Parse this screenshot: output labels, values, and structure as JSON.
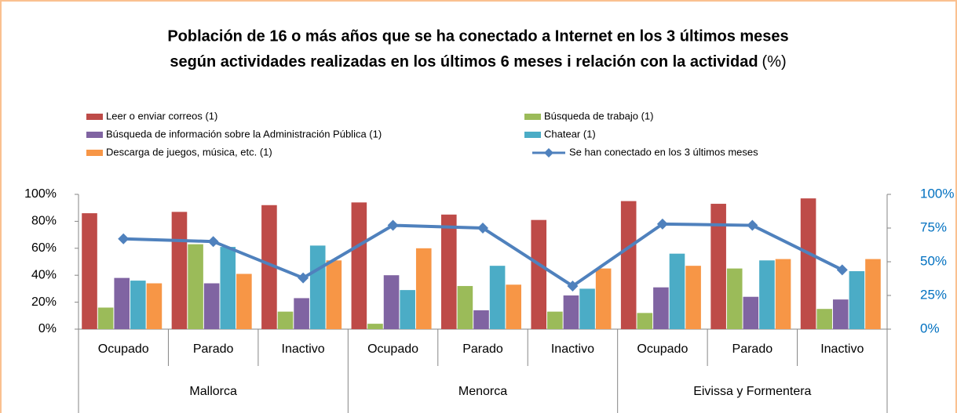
{
  "chart_data": {
    "type": "bar",
    "title": [
      "Población de 16 o más años que se ha conectado a Internet en los 3 últimos meses",
      "según actividades realizadas en los últimos 6 meses i relación con la actividad"
    ],
    "title_unit": "(%)",
    "categories": [
      "Ocupado",
      "Parado",
      "Inactivo",
      "Ocupado",
      "Parado",
      "Inactivo",
      "Ocupado",
      "Parado",
      "Inactivo"
    ],
    "groups": [
      "Mallorca",
      "Menorca",
      "Eivissa y Formentera"
    ],
    "series": [
      {
        "name": "Leer o enviar correos (1)",
        "color": "#be4b48",
        "values": [
          86,
          87,
          92,
          94,
          85,
          81,
          95,
          93,
          97
        ]
      },
      {
        "name": "Búsqueda de trabajo (1)",
        "color": "#9bbb59",
        "values": [
          16,
          63,
          13,
          4,
          32,
          13,
          12,
          45,
          15
        ]
      },
      {
        "name": "Búsqueda de información sobre la Administración Pública (1)",
        "color": "#8064a2",
        "values": [
          38,
          34,
          23,
          40,
          14,
          25,
          31,
          24,
          22
        ]
      },
      {
        "name": "Chatear (1)",
        "color": "#4bacc6",
        "values": [
          36,
          61,
          62,
          29,
          47,
          30,
          56,
          51,
          43
        ]
      },
      {
        "name": "Descarga de juegos, música, etc. (1)",
        "color": "#f79646",
        "values": [
          34,
          41,
          51,
          60,
          33,
          45,
          47,
          52,
          52
        ]
      },
      {
        "name": "Se han conectado en los 3 últimos meses",
        "color": "#4f81bd",
        "type": "line",
        "axis": "y2",
        "values": [
          67,
          65,
          38,
          77,
          75,
          32,
          78,
          77,
          44
        ]
      }
    ],
    "ylim": [
      0,
      100
    ],
    "yticks": [
      {
        "value": 0,
        "label": "0%"
      },
      {
        "value": 20,
        "label": "20%"
      },
      {
        "value": 40,
        "label": "40%"
      },
      {
        "value": 60,
        "label": "60%"
      },
      {
        "value": 80,
        "label": "80%"
      },
      {
        "value": 100,
        "label": "100%"
      }
    ],
    "y2lim": [
      0,
      100
    ],
    "y2ticks": [
      {
        "value": 0,
        "label": "0%"
      },
      {
        "value": 25,
        "label": "25%"
      },
      {
        "value": 50,
        "label": "50%"
      },
      {
        "value": 75,
        "label": "75%"
      },
      {
        "value": 100,
        "label": "100%"
      }
    ],
    "grid": false
  }
}
